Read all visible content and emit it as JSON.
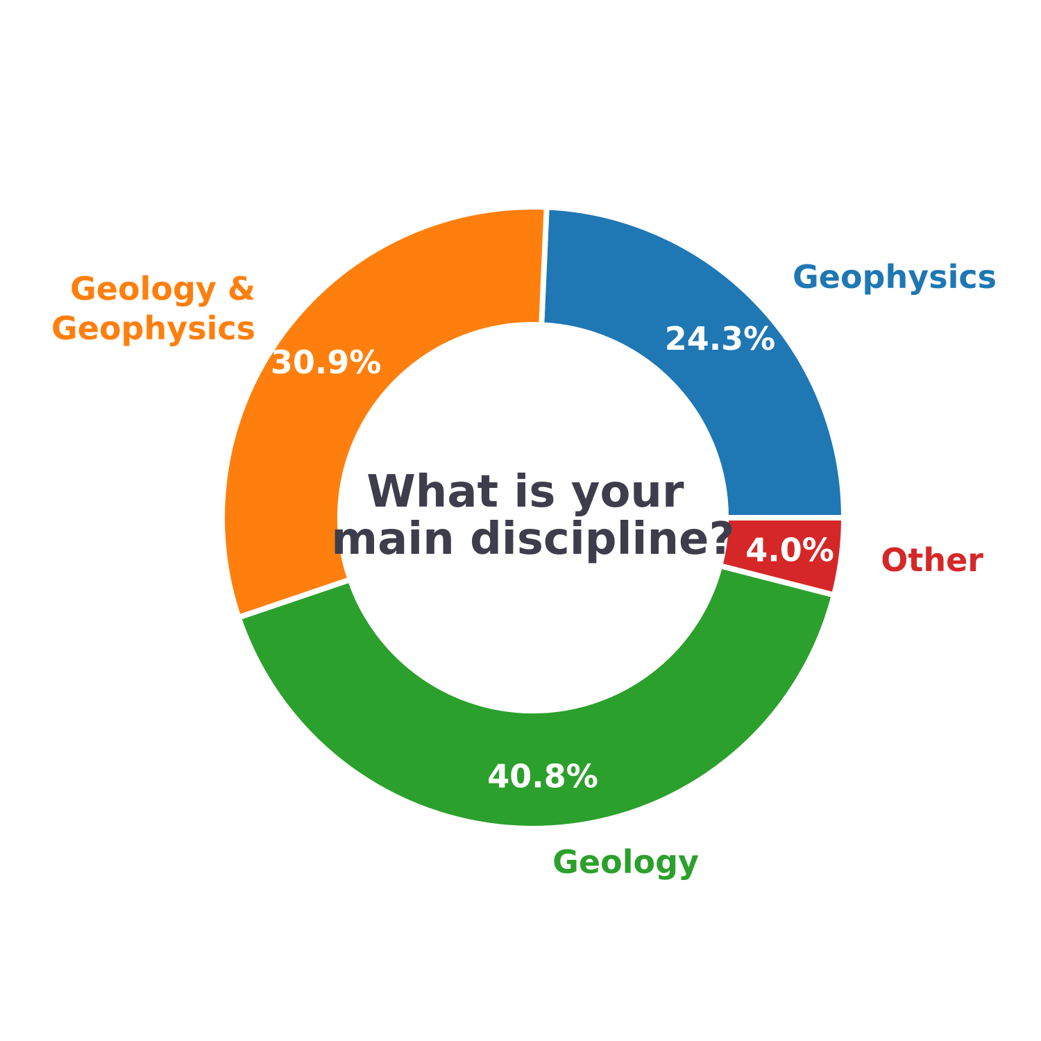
{
  "chart_data": {
    "type": "pie",
    "style": "donut",
    "center_title_lines": [
      "What is your",
      "main discipline?"
    ],
    "slices": [
      {
        "label_lines": [
          "Geophysics"
        ],
        "value": 24.3,
        "label": "24.3%",
        "color": "#1f77b4"
      },
      {
        "label_lines": [
          "Geology &",
          "Geophysics"
        ],
        "value": 30.9,
        "label": "30.9%",
        "color": "#ff7f0e"
      },
      {
        "label_lines": [
          "Geology"
        ],
        "value": 40.8,
        "label": "40.8%",
        "color": "#2ca02c"
      },
      {
        "label_lines": [
          "Other"
        ],
        "value": 4.0,
        "label": "4.0%",
        "color": "#d62728"
      }
    ],
    "legend": "none"
  }
}
